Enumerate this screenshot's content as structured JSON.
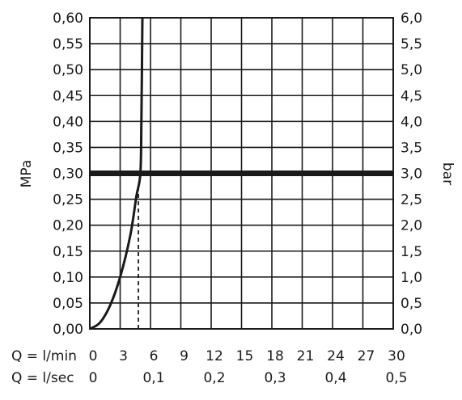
{
  "chart_data": {
    "type": "line",
    "title": "",
    "ylabel_left": "MPa",
    "ylabel_right": "bar",
    "x_primary": {
      "label": "Q = l/min",
      "range": [
        0,
        30
      ],
      "ticks": [
        0,
        3,
        6,
        9,
        12,
        15,
        18,
        21,
        24,
        27,
        30
      ],
      "tick_labels": [
        "0",
        "3",
        "6",
        "9",
        "12",
        "15",
        "18",
        "21",
        "24",
        "27",
        "30"
      ]
    },
    "x_secondary": {
      "label": "Q = l/sec",
      "range": [
        0,
        0.5
      ],
      "ticks": [
        0,
        0.1,
        0.2,
        0.3,
        0.4,
        0.5
      ],
      "tick_labels": [
        "0",
        "0,1",
        "0,2",
        "0,3",
        "0,4",
        "0,5"
      ]
    },
    "y_left": {
      "unit": "MPa",
      "range": [
        0,
        0.6
      ],
      "ticks": [
        0,
        0.05,
        0.1,
        0.15,
        0.2,
        0.25,
        0.3,
        0.35,
        0.4,
        0.45,
        0.5,
        0.55,
        0.6
      ],
      "tick_labels": [
        "0,00",
        "0,05",
        "0,10",
        "0,15",
        "0,20",
        "0,25",
        "0,30",
        "0,35",
        "0,40",
        "0,45",
        "0,50",
        "0,55",
        "0,60"
      ]
    },
    "y_right": {
      "unit": "bar",
      "range": [
        0,
        6
      ],
      "tick_labels": [
        "0,0",
        "0,5",
        "1,0",
        "1,5",
        "2,0",
        "2,5",
        "3,0",
        "3,5",
        "4,0",
        "4,5",
        "5,0",
        "5,5",
        "6,0"
      ]
    },
    "grid": true,
    "series": [
      {
        "style": "curve",
        "x": [
          0,
          1,
          2,
          3,
          4,
          4.6,
          5.0,
          5.1,
          5.2
        ],
        "y": [
          0,
          0.012,
          0.045,
          0.1,
          0.18,
          0.255,
          0.3,
          0.4,
          0.6
        ]
      }
    ],
    "reference_line": {
      "axis": "y",
      "value": 0.3
    },
    "dashed_marker": {
      "x": 4.8,
      "y_from": 0,
      "y_to": 0.28
    },
    "colors": {
      "line": "#1a1a1a",
      "grid": "#1a1a1a",
      "background": "#ffffff"
    }
  }
}
